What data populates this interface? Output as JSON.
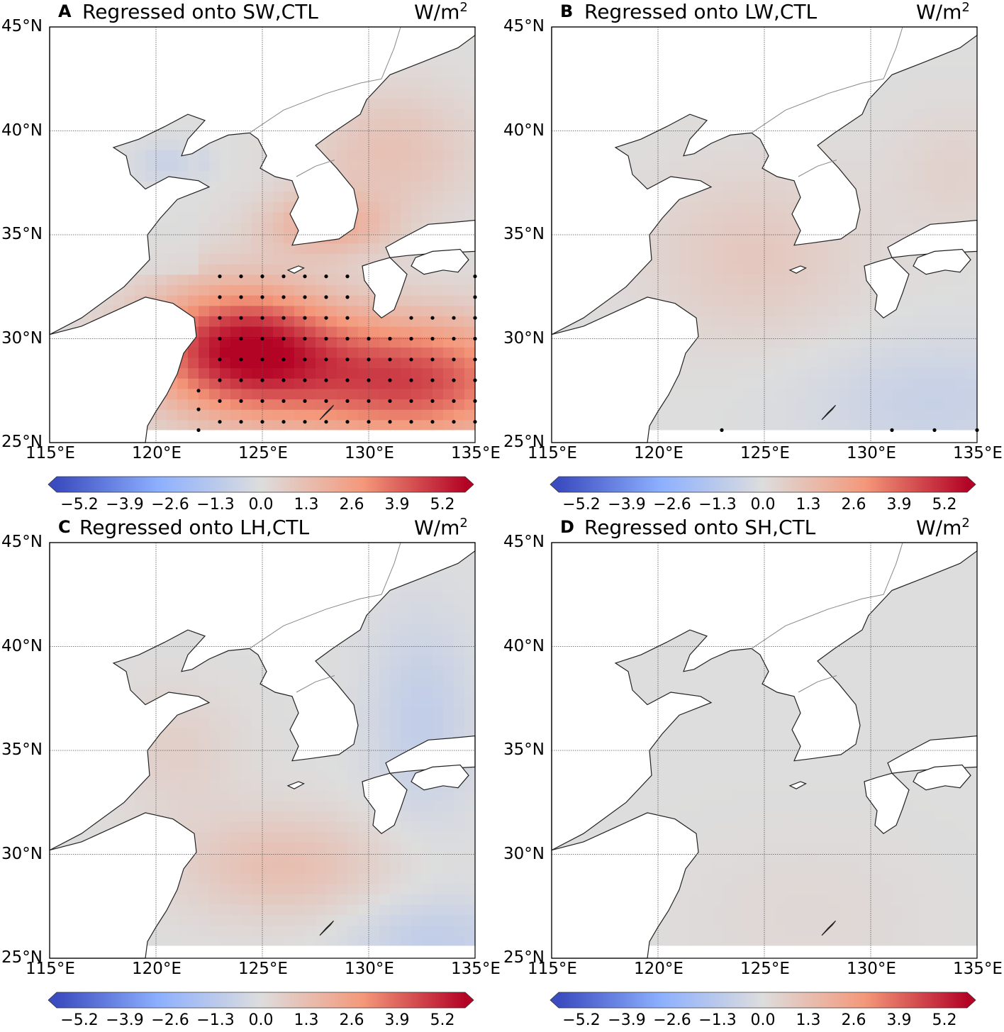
{
  "figure": {
    "colormap": {
      "name": "coolwarm",
      "low_color": "#3b4cc0",
      "mid_color": "#dddddd",
      "high_color": "#b40426",
      "range": [
        -5.85,
        5.85
      ],
      "extend": "both",
      "tick_labels": [
        "−5.2",
        "−3.9",
        "−2.6",
        "−1.3",
        "0.0",
        "1.3",
        "2.6",
        "3.9",
        "5.2"
      ]
    },
    "land_color": "#ffffff",
    "ocean_no_data_color": "#d7d7d7",
    "lon_ticks": [
      "115°E",
      "120°E",
      "125°E",
      "130°E",
      "135°E"
    ],
    "lat_ticks": [
      "45°N",
      "40°N",
      "35°N",
      "30°N",
      "25°N"
    ]
  },
  "panels": [
    {
      "letter": "A",
      "title": "Regressed onto SW,CTL",
      "unit_base": "W/m",
      "unit_exp": "2",
      "field": "sw",
      "stippling": "sw"
    },
    {
      "letter": "B",
      "title": "Regressed onto LW,CTL",
      "unit_base": "W/m",
      "unit_exp": "2",
      "field": "lw",
      "stippling": "lw"
    },
    {
      "letter": "C",
      "title": "Regressed onto LH,CTL",
      "unit_base": "W/m",
      "unit_exp": "2",
      "field": "lh",
      "stippling": "none"
    },
    {
      "letter": "D",
      "title": "Regressed onto SH,CTL",
      "unit_base": "W/m",
      "unit_exp": "2",
      "field": "sh",
      "stippling": "none"
    }
  ]
}
